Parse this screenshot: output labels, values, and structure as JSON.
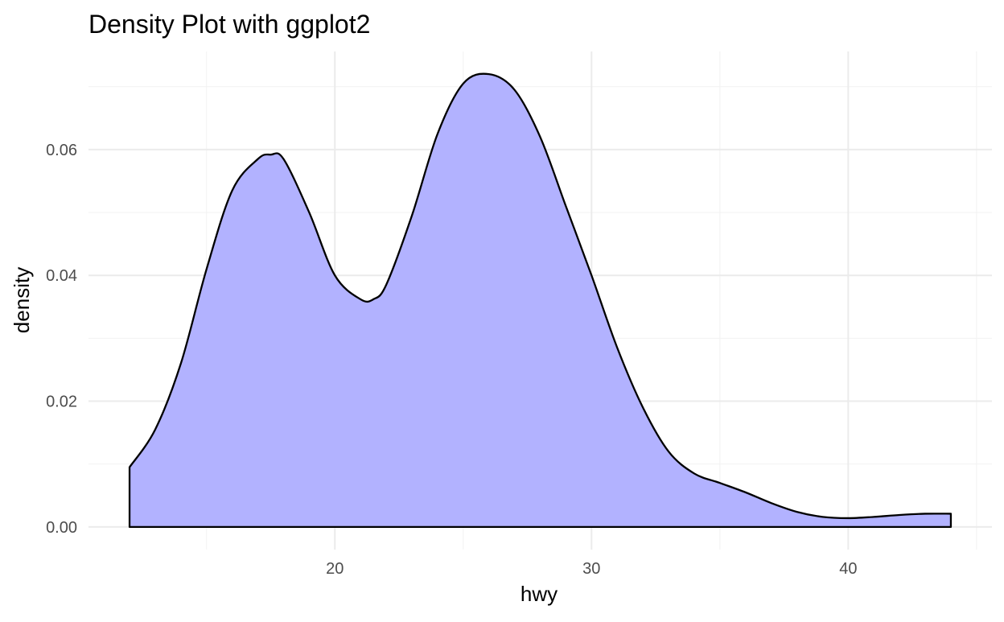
{
  "chart_data": {
    "type": "area",
    "title": "Density Plot with ggplot2",
    "xlabel": "hwy",
    "ylabel": "density",
    "xlim": [
      10.4,
      45.6
    ],
    "ylim": [
      -0.0036,
      0.0756
    ],
    "x_ticks": [
      20,
      30,
      40
    ],
    "x_tick_labels": [
      "20",
      "30",
      "40"
    ],
    "y_ticks": [
      0.0,
      0.02,
      0.04,
      0.06
    ],
    "y_tick_labels": [
      "0.00",
      "0.02",
      "0.04",
      "0.06"
    ],
    "x_minor_ticks": [
      15,
      25,
      35,
      45
    ],
    "y_minor_ticks": [
      0.01,
      0.03,
      0.05,
      0.07
    ],
    "grid": true,
    "fill_color": "#b2b2ff",
    "line_color": "#000000",
    "series": [
      {
        "x": [
          12.0,
          13.0,
          14.0,
          15.0,
          16.0,
          17.0,
          17.5,
          18.0,
          19.0,
          20.0,
          21.0,
          21.5,
          22.0,
          23.0,
          24.0,
          25.0,
          26.0,
          27.0,
          28.0,
          29.0,
          30.0,
          31.0,
          32.0,
          33.0,
          34.0,
          35.0,
          36.0,
          37.0,
          38.0,
          39.0,
          40.0,
          41.0,
          42.0,
          43.0,
          44.0
        ],
        "y": [
          0.0095,
          0.0155,
          0.026,
          0.041,
          0.0535,
          0.0585,
          0.0592,
          0.0585,
          0.05,
          0.04,
          0.0362,
          0.0362,
          0.0385,
          0.0495,
          0.0625,
          0.0705,
          0.072,
          0.0695,
          0.062,
          0.051,
          0.04,
          0.0285,
          0.019,
          0.012,
          0.0085,
          0.007,
          0.0055,
          0.0038,
          0.0024,
          0.0016,
          0.0014,
          0.0016,
          0.0019,
          0.0021,
          0.0021
        ]
      }
    ]
  }
}
